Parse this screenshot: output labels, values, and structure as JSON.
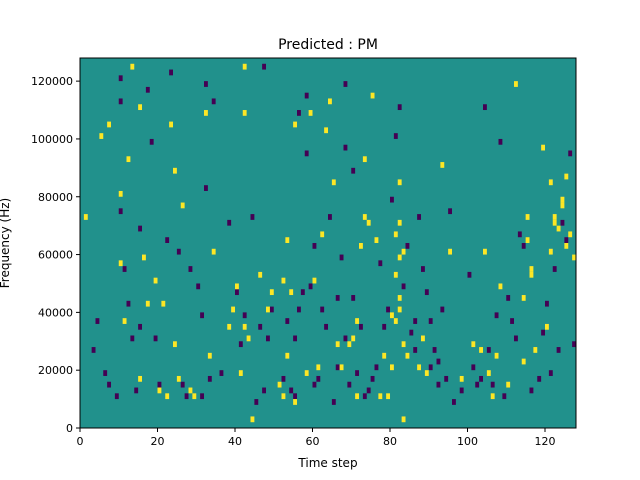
{
  "chart_data": {
    "type": "heatmap",
    "title": "Predicted : PM",
    "xlabel": "Time step",
    "ylabel": "Frequency (Hz)",
    "xlim": [
      0,
      128
    ],
    "ylim": [
      0,
      128000
    ],
    "x_ticks": [
      0,
      20,
      40,
      60,
      80,
      100,
      120
    ],
    "x_tick_labels": [
      "0",
      "20",
      "40",
      "60",
      "80",
      "100",
      "120"
    ],
    "y_ticks": [
      0,
      20000,
      40000,
      60000,
      80000,
      100000,
      120000
    ],
    "y_tick_labels": [
      "0",
      "20000",
      "40000",
      "60000",
      "80000",
      "100000",
      "120000"
    ],
    "grid": false,
    "legend": "none",
    "colors": {
      "background_value": "#21918c",
      "high_value": "#fde725",
      "low_value": "#440154",
      "frame": "#000000"
    },
    "row_height_hz": 2000,
    "high_cells": [
      [
        1,
        72000
      ],
      [
        5,
        100000
      ],
      [
        7,
        104000
      ],
      [
        10,
        80000
      ],
      [
        10,
        56000
      ],
      [
        11,
        36000
      ],
      [
        12,
        92000
      ],
      [
        13,
        124000
      ],
      [
        15,
        110000
      ],
      [
        15,
        16000
      ],
      [
        16,
        58000
      ],
      [
        17,
        42000
      ],
      [
        19,
        50000
      ],
      [
        20,
        12000
      ],
      [
        21,
        42000
      ],
      [
        22,
        10000
      ],
      [
        23,
        104000
      ],
      [
        24,
        88000
      ],
      [
        24,
        28000
      ],
      [
        25,
        16000
      ],
      [
        26,
        76000
      ],
      [
        28,
        12000
      ],
      [
        29,
        10000
      ],
      [
        32,
        108000
      ],
      [
        33,
        24000
      ],
      [
        34,
        60000
      ],
      [
        38,
        34000
      ],
      [
        39,
        40000
      ],
      [
        40,
        48000
      ],
      [
        41,
        18000
      ],
      [
        42,
        124000
      ],
      [
        42,
        108000
      ],
      [
        42,
        34000
      ],
      [
        43,
        30000
      ],
      [
        44,
        2000
      ],
      [
        46,
        52000
      ],
      [
        48,
        40000
      ],
      [
        49,
        46000
      ],
      [
        51,
        14000
      ],
      [
        52,
        10000
      ],
      [
        52,
        50000
      ],
      [
        53,
        24000
      ],
      [
        53,
        64000
      ],
      [
        54,
        46000
      ],
      [
        55,
        104000
      ],
      [
        55,
        8000
      ],
      [
        58,
        18000
      ],
      [
        59,
        108000
      ],
      [
        60,
        50000
      ],
      [
        61,
        20000
      ],
      [
        62,
        66000
      ],
      [
        63,
        102000
      ],
      [
        64,
        112000
      ],
      [
        65,
        84000
      ],
      [
        66,
        28000
      ],
      [
        67,
        20000
      ],
      [
        69,
        28000
      ],
      [
        70,
        30000
      ],
      [
        71,
        36000
      ],
      [
        71,
        10000
      ],
      [
        72,
        62000
      ],
      [
        73,
        92000
      ],
      [
        73,
        72000
      ],
      [
        74,
        70000
      ],
      [
        75,
        114000
      ],
      [
        76,
        64000
      ],
      [
        77,
        10000
      ],
      [
        78,
        24000
      ],
      [
        79,
        10000
      ],
      [
        80,
        20000
      ],
      [
        80,
        38000
      ],
      [
        81,
        36000
      ],
      [
        81,
        52000
      ],
      [
        81,
        66000
      ],
      [
        82,
        40000
      ],
      [
        82,
        58000
      ],
      [
        82,
        44000
      ],
      [
        82,
        70000
      ],
      [
        82,
        84000
      ],
      [
        83,
        60000
      ],
      [
        83,
        28000
      ],
      [
        84,
        24000
      ],
      [
        83,
        2000
      ],
      [
        87,
        20000
      ],
      [
        88,
        30000
      ],
      [
        89,
        18000
      ],
      [
        93,
        90000
      ],
      [
        95,
        60000
      ],
      [
        98,
        16000
      ],
      [
        101,
        28000
      ],
      [
        103,
        26000
      ],
      [
        104,
        60000
      ],
      [
        105,
        18000
      ],
      [
        106,
        10000
      ],
      [
        107,
        24000
      ],
      [
        108,
        48000
      ],
      [
        110,
        14000
      ],
      [
        112,
        118000
      ],
      [
        114,
        22000
      ],
      [
        114,
        44000
      ],
      [
        115,
        72000
      ],
      [
        115,
        64000
      ],
      [
        116,
        54000
      ],
      [
        116,
        52000
      ],
      [
        117,
        26000
      ],
      [
        119,
        96000
      ],
      [
        120,
        34000
      ],
      [
        121,
        84000
      ],
      [
        121,
        60000
      ],
      [
        122,
        72000
      ],
      [
        122,
        70000
      ],
      [
        123,
        68000
      ],
      [
        124,
        76000
      ],
      [
        124,
        78000
      ],
      [
        125,
        86000
      ],
      [
        125,
        62000
      ],
      [
        126,
        66000
      ],
      [
        127,
        58000
      ]
    ],
    "low_cells": [
      [
        3,
        26000
      ],
      [
        4,
        36000
      ],
      [
        6,
        18000
      ],
      [
        7,
        14000
      ],
      [
        9,
        10000
      ],
      [
        10,
        120000
      ],
      [
        10,
        112000
      ],
      [
        10,
        74000
      ],
      [
        11,
        54000
      ],
      [
        12,
        42000
      ],
      [
        13,
        30000
      ],
      [
        14,
        12000
      ],
      [
        15,
        68000
      ],
      [
        15,
        34000
      ],
      [
        17,
        116000
      ],
      [
        18,
        98000
      ],
      [
        19,
        30000
      ],
      [
        20,
        14000
      ],
      [
        22,
        64000
      ],
      [
        23,
        122000
      ],
      [
        25,
        60000
      ],
      [
        26,
        14000
      ],
      [
        27,
        10000
      ],
      [
        28,
        54000
      ],
      [
        30,
        48000
      ],
      [
        31,
        10000
      ],
      [
        31,
        38000
      ],
      [
        32,
        118000
      ],
      [
        32,
        82000
      ],
      [
        33,
        16000
      ],
      [
        34,
        112000
      ],
      [
        36,
        18000
      ],
      [
        38,
        70000
      ],
      [
        40,
        46000
      ],
      [
        41,
        28000
      ],
      [
        42,
        38000
      ],
      [
        44,
        72000
      ],
      [
        45,
        8000
      ],
      [
        46,
        34000
      ],
      [
        47,
        124000
      ],
      [
        47,
        12000
      ],
      [
        48,
        30000
      ],
      [
        49,
        40000
      ],
      [
        52,
        16000
      ],
      [
        53,
        36000
      ],
      [
        54,
        12000
      ],
      [
        55,
        10000
      ],
      [
        55,
        30000
      ],
      [
        56,
        108000
      ],
      [
        56,
        40000
      ],
      [
        57,
        46000
      ],
      [
        58,
        114000
      ],
      [
        58,
        94000
      ],
      [
        59,
        48000
      ],
      [
        60,
        14000
      ],
      [
        60,
        62000
      ],
      [
        61,
        16000
      ],
      [
        62,
        40000
      ],
      [
        63,
        34000
      ],
      [
        64,
        72000
      ],
      [
        65,
        8000
      ],
      [
        66,
        20000
      ],
      [
        66,
        44000
      ],
      [
        67,
        58000
      ],
      [
        68,
        118000
      ],
      [
        68,
        96000
      ],
      [
        68,
        30000
      ],
      [
        69,
        14000
      ],
      [
        70,
        88000
      ],
      [
        70,
        44000
      ],
      [
        71,
        18000
      ],
      [
        72,
        34000
      ],
      [
        73,
        10000
      ],
      [
        74,
        12000
      ],
      [
        75,
        16000
      ],
      [
        76,
        20000
      ],
      [
        77,
        56000
      ],
      [
        78,
        34000
      ],
      [
        79,
        40000
      ],
      [
        80,
        78000
      ],
      [
        81,
        100000
      ],
      [
        82,
        110000
      ],
      [
        83,
        48000
      ],
      [
        84,
        62000
      ],
      [
        85,
        32000
      ],
      [
        86,
        36000
      ],
      [
        86,
        26000
      ],
      [
        87,
        72000
      ],
      [
        88,
        54000
      ],
      [
        89,
        46000
      ],
      [
        90,
        36000
      ],
      [
        90,
        20000
      ],
      [
        91,
        26000
      ],
      [
        92,
        14000
      ],
      [
        92,
        22000
      ],
      [
        93,
        40000
      ],
      [
        94,
        16000
      ],
      [
        95,
        74000
      ],
      [
        96,
        8000
      ],
      [
        98,
        12000
      ],
      [
        100,
        52000
      ],
      [
        101,
        20000
      ],
      [
        102,
        14000
      ],
      [
        103,
        16000
      ],
      [
        104,
        110000
      ],
      [
        105,
        26000
      ],
      [
        106,
        14000
      ],
      [
        107,
        38000
      ],
      [
        108,
        98000
      ],
      [
        109,
        10000
      ],
      [
        110,
        44000
      ],
      [
        111,
        36000
      ],
      [
        112,
        30000
      ],
      [
        113,
        66000
      ],
      [
        114,
        62000
      ],
      [
        116,
        12000
      ],
      [
        118,
        16000
      ],
      [
        119,
        32000
      ],
      [
        120,
        42000
      ],
      [
        121,
        18000
      ],
      [
        122,
        54000
      ],
      [
        123,
        26000
      ],
      [
        124,
        70000
      ],
      [
        125,
        64000
      ],
      [
        126,
        94000
      ],
      [
        127,
        28000
      ]
    ]
  }
}
